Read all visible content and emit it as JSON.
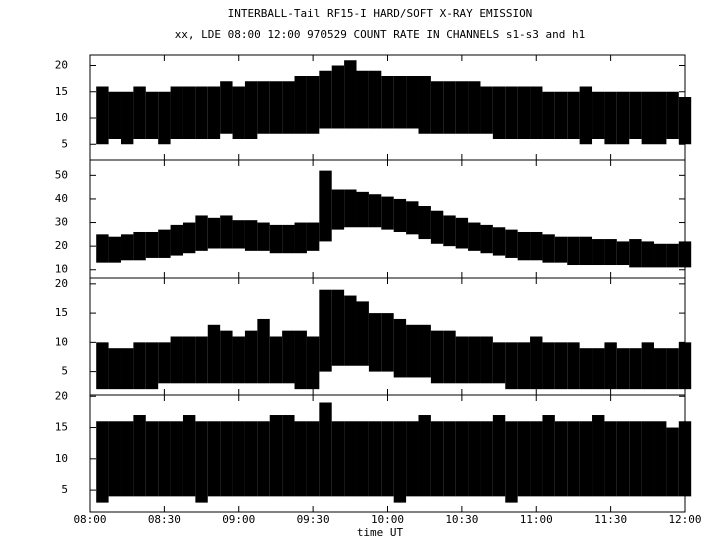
{
  "chart_data": {
    "type": "range",
    "title": "INTERBALL-Tail RF15-I HARD/SOFT X-RAY EMISSION",
    "subtitle": "xx, LDE 08:00 12:00 970529  COUNT RATE IN CHANNELS s1-s3 and h1",
    "xlabel": "time UT",
    "xlim": [
      "08:00",
      "12:00"
    ],
    "xticks": [
      "08:00",
      "08:30",
      "09:00",
      "09:30",
      "10:00",
      "10:30",
      "11:00",
      "11:30",
      "12:00"
    ],
    "x": [
      "08:05",
      "08:10",
      "08:15",
      "08:20",
      "08:25",
      "08:30",
      "08:35",
      "08:40",
      "08:45",
      "08:50",
      "08:55",
      "09:00",
      "09:05",
      "09:10",
      "09:15",
      "09:20",
      "09:25",
      "09:30",
      "09:35",
      "09:40",
      "09:45",
      "09:50",
      "09:55",
      "10:00",
      "10:05",
      "10:10",
      "10:15",
      "10:20",
      "10:25",
      "10:30",
      "10:35",
      "10:40",
      "10:45",
      "10:50",
      "10:55",
      "11:00",
      "11:05",
      "11:10",
      "11:15",
      "11:20",
      "11:25",
      "11:30",
      "11:35",
      "11:40",
      "11:45",
      "11:50",
      "11:55",
      "12:00"
    ],
    "color": "#000000",
    "panels": [
      {
        "ylim": [
          2,
          22
        ],
        "yticks": [
          5,
          10,
          15,
          20
        ],
        "low": [
          5,
          6,
          5,
          6,
          6,
          5,
          6,
          6,
          6,
          6,
          7,
          6,
          6,
          7,
          7,
          7,
          7,
          7,
          8,
          8,
          8,
          8,
          8,
          8,
          8,
          8,
          7,
          7,
          7,
          7,
          7,
          7,
          6,
          6,
          6,
          6,
          6,
          6,
          6,
          5,
          6,
          5,
          5,
          6,
          5,
          5,
          6,
          5
        ],
        "high": [
          16,
          15,
          15,
          16,
          15,
          15,
          16,
          16,
          16,
          16,
          17,
          16,
          17,
          17,
          17,
          17,
          18,
          18,
          19,
          20,
          21,
          19,
          19,
          18,
          18,
          18,
          18,
          17,
          17,
          17,
          17,
          16,
          16,
          16,
          16,
          16,
          15,
          15,
          15,
          16,
          15,
          15,
          15,
          15,
          15,
          15,
          15,
          14
        ]
      },
      {
        "ylim": [
          6.5,
          56.5
        ],
        "yticks": [
          10,
          20,
          30,
          40,
          50
        ],
        "low": [
          13,
          13,
          14,
          14,
          15,
          15,
          16,
          17,
          18,
          19,
          19,
          19,
          18,
          18,
          17,
          17,
          17,
          18,
          22,
          27,
          28,
          28,
          28,
          27,
          26,
          25,
          23,
          21,
          20,
          19,
          18,
          17,
          16,
          15,
          14,
          14,
          13,
          13,
          12,
          12,
          12,
          12,
          12,
          11,
          11,
          11,
          11,
          11
        ],
        "high": [
          25,
          24,
          25,
          26,
          26,
          27,
          29,
          30,
          33,
          32,
          33,
          31,
          31,
          30,
          29,
          29,
          30,
          30,
          52,
          44,
          44,
          43,
          42,
          41,
          40,
          39,
          37,
          35,
          33,
          32,
          30,
          29,
          28,
          27,
          26,
          26,
          25,
          24,
          24,
          24,
          23,
          23,
          22,
          23,
          22,
          21,
          21,
          22
        ]
      },
      {
        "ylim": [
          1,
          21
        ],
        "yticks": [
          5,
          10,
          15,
          20
        ],
        "low": [
          2,
          2,
          2,
          2,
          2,
          3,
          3,
          3,
          3,
          3,
          3,
          3,
          3,
          3,
          3,
          3,
          2,
          2,
          5,
          6,
          6,
          6,
          5,
          5,
          4,
          4,
          4,
          3,
          3,
          3,
          3,
          3,
          3,
          2,
          2,
          2,
          2,
          2,
          2,
          2,
          2,
          2,
          2,
          2,
          2,
          2,
          2,
          2
        ],
        "high": [
          10,
          9,
          9,
          10,
          10,
          10,
          11,
          11,
          11,
          13,
          12,
          11,
          12,
          14,
          11,
          12,
          12,
          11,
          19,
          19,
          18,
          17,
          15,
          15,
          14,
          13,
          13,
          12,
          12,
          11,
          11,
          11,
          10,
          10,
          10,
          11,
          10,
          10,
          10,
          9,
          9,
          10,
          9,
          9,
          10,
          9,
          9,
          10
        ]
      },
      {
        "ylim": [
          1.5,
          20.2
        ],
        "yticks": [
          5,
          10,
          15,
          20
        ],
        "low": [
          3,
          4,
          4,
          4,
          4,
          4,
          4,
          4,
          3,
          4,
          4,
          4,
          4,
          4,
          4,
          4,
          4,
          4,
          4,
          4,
          4,
          4,
          4,
          4,
          3,
          4,
          4,
          4,
          4,
          4,
          4,
          4,
          4,
          3,
          4,
          4,
          4,
          4,
          4,
          4,
          4,
          4,
          4,
          4,
          4,
          4,
          4,
          4
        ],
        "high": [
          16,
          16,
          16,
          17,
          16,
          16,
          16,
          17,
          16,
          16,
          16,
          16,
          16,
          16,
          17,
          17,
          16,
          16,
          19,
          16,
          16,
          16,
          16,
          16,
          16,
          16,
          17,
          16,
          16,
          16,
          16,
          16,
          17,
          16,
          16,
          16,
          17,
          16,
          16,
          16,
          17,
          16,
          16,
          16,
          16,
          16,
          15,
          16
        ]
      }
    ]
  }
}
